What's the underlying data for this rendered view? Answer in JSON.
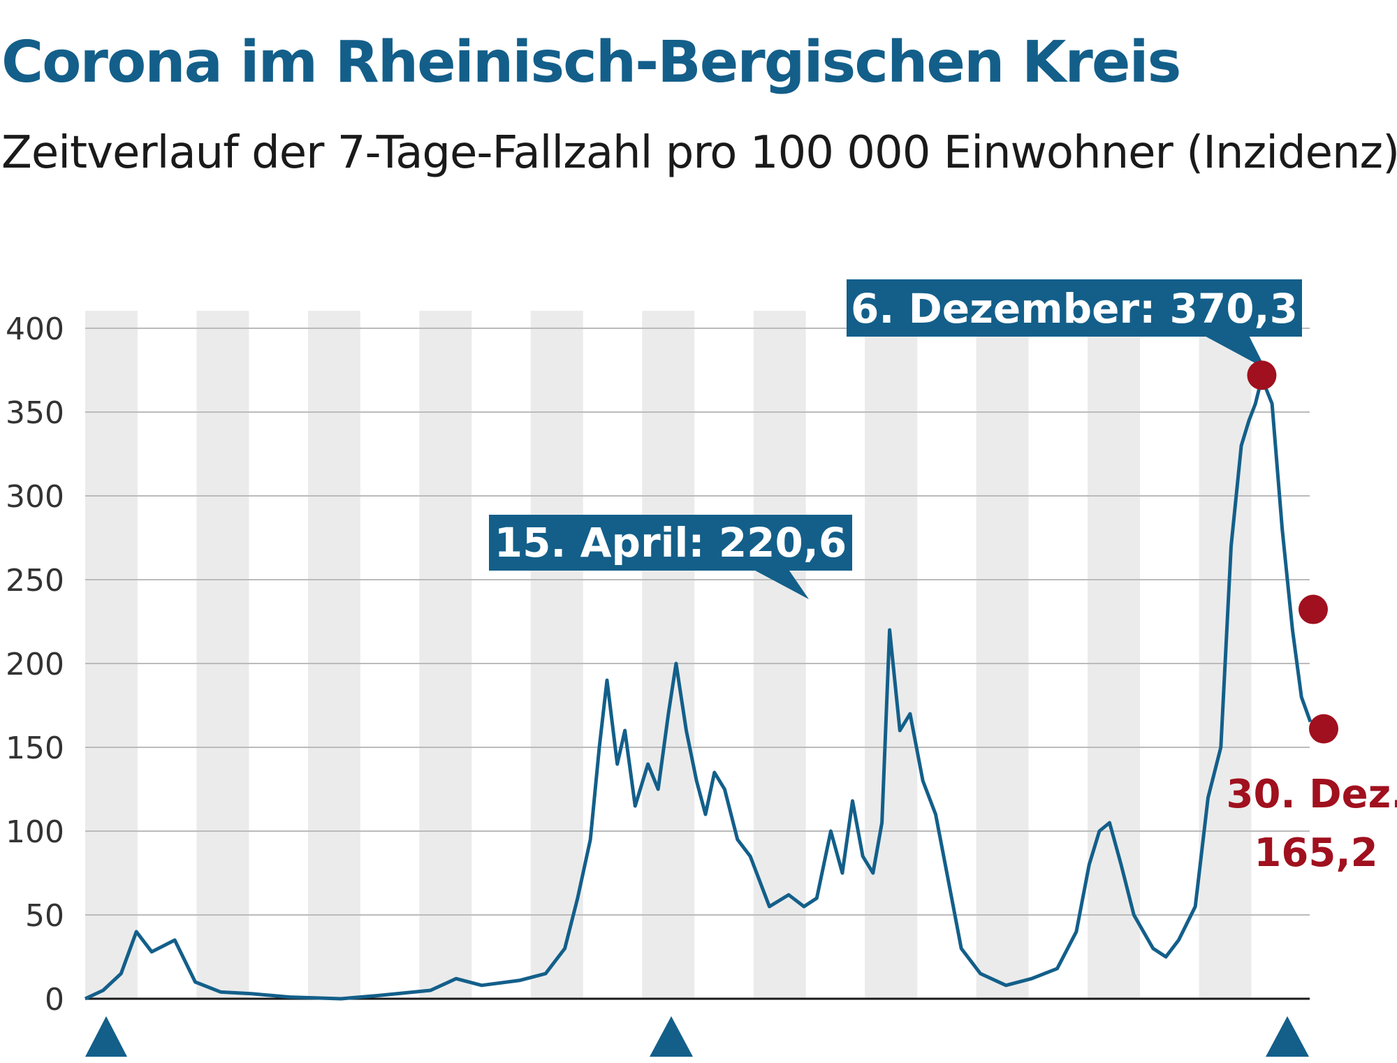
{
  "title": "Corona im Rheinisch-Bergischen Kreis",
  "subtitle": "Zeitverlauf der 7-Tage-Fallzahl pro 100 000 Einwohner (Inzidenz)",
  "colors": {
    "line": "#135f8a",
    "callout": "#135f8a",
    "marker": "#a0101e",
    "band": "#ebebeb",
    "grid": "#bbbbbb"
  },
  "chart_data": {
    "type": "line",
    "ylim": [
      0,
      400
    ],
    "yticks": [
      "0",
      "50",
      "100",
      "150",
      "200",
      "250",
      "300",
      "350",
      "400"
    ],
    "month_bands": 22,
    "series": [
      {
        "day_values": [
          [
            0,
            0
          ],
          [
            14,
            5
          ],
          [
            28,
            15
          ],
          [
            40,
            40
          ],
          [
            52,
            28
          ],
          [
            70,
            35
          ],
          [
            86,
            10
          ],
          [
            106,
            4
          ],
          [
            130,
            3
          ],
          [
            160,
            1
          ],
          [
            200,
            0
          ],
          [
            230,
            2
          ],
          [
            270,
            5
          ],
          [
            290,
            12
          ],
          [
            310,
            8
          ],
          [
            340,
            11
          ],
          [
            360,
            15
          ],
          [
            375,
            30
          ],
          [
            385,
            60
          ],
          [
            395,
            95
          ],
          [
            402,
            150
          ],
          [
            408,
            190
          ],
          [
            416,
            140
          ],
          [
            422,
            160
          ],
          [
            430,
            115
          ],
          [
            440,
            140
          ],
          [
            448,
            125
          ],
          [
            456,
            170
          ],
          [
            462,
            200
          ],
          [
            470,
            160
          ],
          [
            478,
            130
          ],
          [
            485,
            110
          ],
          [
            492,
            135
          ],
          [
            500,
            125
          ],
          [
            510,
            95
          ],
          [
            520,
            85
          ],
          [
            535,
            55
          ],
          [
            550,
            62
          ],
          [
            562,
            55
          ],
          [
            572,
            60
          ],
          [
            583,
            100
          ],
          [
            592,
            75
          ],
          [
            600,
            118
          ],
          [
            608,
            85
          ],
          [
            616,
            75
          ],
          [
            623,
            105
          ],
          [
            629,
            220
          ],
          [
            637,
            160
          ],
          [
            645,
            170
          ],
          [
            655,
            130
          ],
          [
            665,
            110
          ],
          [
            675,
            70
          ],
          [
            685,
            30
          ],
          [
            700,
            15
          ],
          [
            720,
            8
          ],
          [
            740,
            12
          ],
          [
            760,
            18
          ],
          [
            775,
            40
          ],
          [
            785,
            80
          ],
          [
            793,
            100
          ],
          [
            801,
            105
          ],
          [
            810,
            80
          ],
          [
            820,
            50
          ],
          [
            835,
            30
          ],
          [
            845,
            25
          ],
          [
            855,
            35
          ],
          [
            868,
            55
          ],
          [
            878,
            120
          ],
          [
            888,
            150
          ],
          [
            896,
            270
          ],
          [
            904,
            330
          ],
          [
            910,
            345
          ],
          [
            915,
            355
          ],
          [
            920,
            370.3
          ],
          [
            928,
            355
          ],
          [
            936,
            280
          ],
          [
            944,
            220
          ],
          [
            951,
            180
          ],
          [
            958,
            165.2
          ]
        ]
      }
    ],
    "annotations": [
      {
        "label": "15. April: 220,6",
        "value": 220.6
      },
      {
        "label": "6. Dezember: 370,3",
        "value": 370.3
      },
      {
        "label_line1": "30. Dez.",
        "label_line2": "165,2",
        "value": 165.2
      }
    ]
  }
}
